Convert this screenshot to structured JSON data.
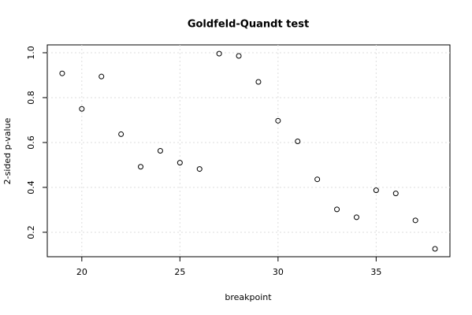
{
  "chart_data": {
    "type": "scatter",
    "title": "Goldfeld-Quandt test",
    "x_label": "breakpoint",
    "y_label": "2-sided p-value",
    "x": [
      19,
      20,
      21,
      22,
      23,
      24,
      25,
      26,
      27,
      28,
      29,
      30,
      31,
      32,
      33,
      34,
      35,
      36,
      37,
      38
    ],
    "values": [
      0.908,
      0.75,
      0.894,
      0.637,
      0.492,
      0.563,
      0.51,
      0.482,
      0.996,
      0.986,
      0.87,
      0.697,
      0.605,
      0.436,
      0.302,
      0.267,
      0.387,
      0.373,
      0.253,
      0.126
    ],
    "color": "#000000",
    "xlim": [
      18.24,
      38.76
    ],
    "xticks": [
      20,
      25,
      30,
      35
    ],
    "ylim": [
      0.091,
      1.035
    ],
    "yticks": [
      0.2,
      0.4,
      0.6,
      0.8,
      {
        "value": 1.0,
        "label": "1.0"
      }
    ],
    "grid": true
  }
}
